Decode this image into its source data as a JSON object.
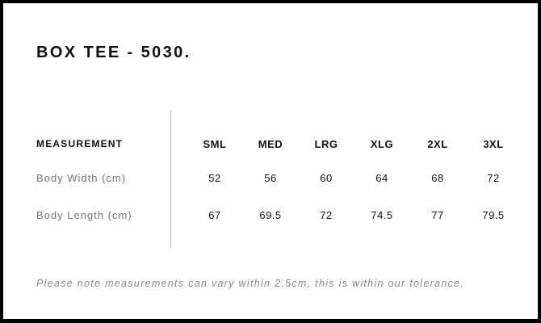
{
  "title": "BOX TEE - 5030.",
  "table": {
    "header_label": "MEASUREMENT",
    "sizes": [
      "SML",
      "MED",
      "LRG",
      "XLG",
      "2XL",
      "3XL"
    ],
    "rows": [
      {
        "label": "Body Width (cm)",
        "values": [
          "52",
          "56",
          "60",
          "64",
          "68",
          "72"
        ]
      },
      {
        "label": "Body Length (cm)",
        "values": [
          "67",
          "69.5",
          "72",
          "74.5",
          "77",
          "79.5"
        ]
      }
    ]
  },
  "note": "Please note measurements can vary within 2.5cm, this is within our tolerance."
}
